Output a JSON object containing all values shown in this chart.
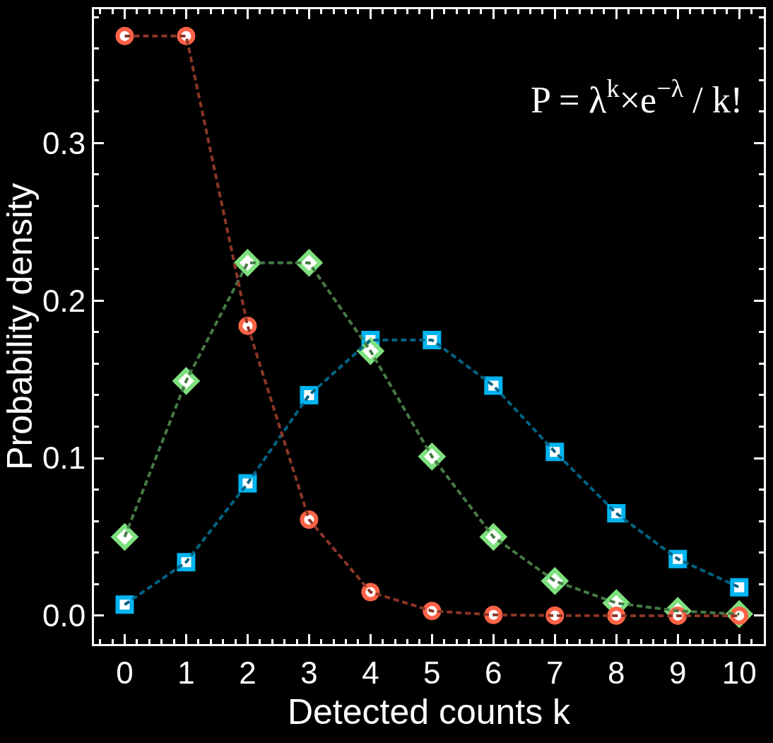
{
  "chart_data": {
    "type": "line",
    "xlabel": "Detected counts k",
    "ylabel": "Probability density",
    "x": [
      0,
      1,
      2,
      3,
      4,
      5,
      6,
      7,
      8,
      9,
      10
    ],
    "series": [
      {
        "color": "#ff6347",
        "marker": "circle",
        "values": [
          0.368,
          0.368,
          0.184,
          0.061,
          0.015,
          0.003,
          0.0005,
          0.0001,
          0.0,
          0.0,
          0.0
        ]
      },
      {
        "color": "#7ee07e",
        "marker": "diamond",
        "values": [
          0.05,
          0.149,
          0.224,
          0.224,
          0.168,
          0.101,
          0.05,
          0.022,
          0.008,
          0.003,
          0.001
        ]
      },
      {
        "color": "#00b4f0",
        "marker": "square",
        "values": [
          0.007,
          0.034,
          0.084,
          0.14,
          0.175,
          0.175,
          0.146,
          0.104,
          0.065,
          0.036,
          0.018
        ]
      }
    ],
    "line_style": "dashed",
    "xlim": [
      -0.5,
      10.4
    ],
    "xticks": [
      0,
      1,
      2,
      3,
      4,
      5,
      6,
      7,
      8,
      9,
      10
    ],
    "ylim": [
      -0.018,
      0.385
    ],
    "yticks": [
      {
        "value": 0,
        "label": "0.0"
      },
      {
        "value": 0.1,
        "label": "0.1"
      },
      {
        "value": 0.2,
        "label": "0.2"
      },
      {
        "value": 0.3,
        "label": "0.3"
      }
    ],
    "grid": false,
    "annotations": [
      "P = λ$^{k}$×e$^{−λ}$ / k!"
    ]
  }
}
